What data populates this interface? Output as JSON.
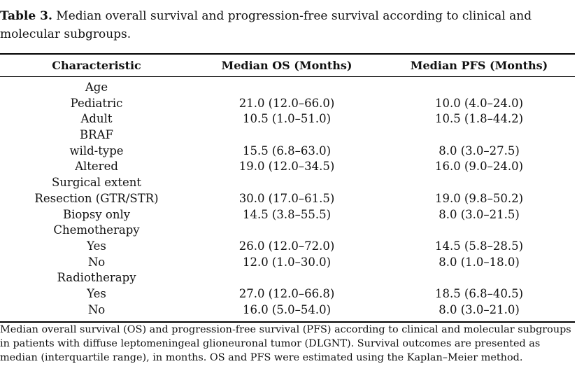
{
  "caption": {
    "label": "Table 3.",
    "text": "Median overall survival and progression-free survival according to clinical and molecular subgroups."
  },
  "table": {
    "headers": [
      "Characteristic",
      "Median OS (Months)",
      "Median PFS (Months)"
    ],
    "rows": [
      [
        "Age",
        "",
        ""
      ],
      [
        "Pediatric",
        "21.0 (12.0–66.0)",
        "10.0 (4.0–24.0)"
      ],
      [
        "Adult",
        "10.5 (1.0–51.0)",
        "10.5 (1.8–44.2)"
      ],
      [
        "BRAF",
        "",
        ""
      ],
      [
        "wild-type",
        "15.5 (6.8–63.0)",
        "8.0 (3.0–27.5)"
      ],
      [
        "Altered",
        "19.0 (12.0–34.5)",
        "16.0 (9.0–24.0)"
      ],
      [
        "Surgical extent",
        "",
        ""
      ],
      [
        "Resection (GTR/STR)",
        "30.0 (17.0–61.5)",
        "19.0 (9.8–50.2)"
      ],
      [
        "Biopsy only",
        "14.5 (3.8–55.5)",
        "8.0 (3.0–21.5)"
      ],
      [
        "Chemotherapy",
        "",
        ""
      ],
      [
        "Yes",
        "26.0 (12.0–72.0)",
        "14.5 (5.8–28.5)"
      ],
      [
        "No",
        "12.0 (1.0–30.0)",
        "8.0 (1.0–18.0)"
      ],
      [
        "Radiotherapy",
        "",
        ""
      ],
      [
        "Yes",
        "27.0 (12.0–66.8)",
        "18.5 (6.8–40.5)"
      ],
      [
        "No",
        "16.0 (5.0–54.0)",
        "8.0 (3.0–21.0)"
      ]
    ]
  },
  "footnote": "Median overall survival (OS) and progression-free survival (PFS) according to clinical and molecular subgroups in patients with diffuse leptomeningeal glioneuronal tumor (DLGNT). Survival outcomes are presented as median (interquartile range), in months. OS and PFS were estimated using the Kaplan–Meier method."
}
